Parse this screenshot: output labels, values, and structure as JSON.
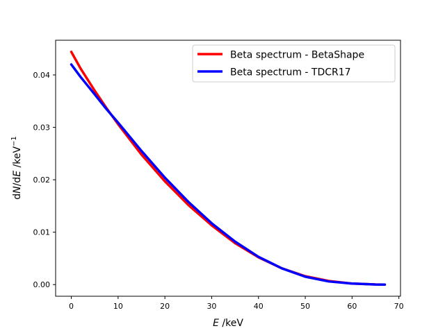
{
  "chart_data": {
    "type": "line",
    "title": "",
    "xlabel": "E /keV",
    "ylabel": "dN/dE /keV⁻¹",
    "xlim": [
      -3.35,
      70.35
    ],
    "ylim": [
      -0.00222,
      0.04662
    ],
    "grid": false,
    "legend_position": "top-right",
    "x_ticks": [
      0,
      10,
      20,
      30,
      40,
      50,
      60,
      70
    ],
    "y_ticks": [
      0.0,
      0.01,
      0.02,
      0.03,
      0.04
    ],
    "x_tick_labels": [
      "0",
      "10",
      "20",
      "30",
      "40",
      "50",
      "60",
      "70"
    ],
    "y_tick_labels": [
      "0.00",
      "0.01",
      "0.02",
      "0.03",
      "0.04"
    ],
    "series": [
      {
        "name": "Beta spectrum - BetaShape",
        "color": "#ff0000",
        "x": [
          0,
          2,
          5,
          7.5,
          10,
          15,
          20,
          25,
          30,
          35,
          40,
          45,
          50,
          55,
          60,
          63,
          65,
          67
        ],
        "y": [
          0.0444,
          0.0412,
          0.037,
          0.0337,
          0.0306,
          0.0248,
          0.0197,
          0.0152,
          0.0113,
          0.0079,
          0.0052,
          0.0031,
          0.0016,
          0.0007,
          0.0002,
          0.0001,
          3e-05,
          0.0
        ]
      },
      {
        "name": "Beta spectrum - TDCR17",
        "color": "#0000ff",
        "x": [
          0,
          2,
          5,
          7.5,
          10,
          15,
          20,
          25,
          30,
          35,
          40,
          45,
          50,
          55,
          60,
          63,
          65,
          67
        ],
        "y": [
          0.042,
          0.0396,
          0.0363,
          0.0335,
          0.0309,
          0.0255,
          0.0204,
          0.0158,
          0.0117,
          0.0082,
          0.0053,
          0.0031,
          0.0015,
          0.0006,
          0.0002,
          0.0001,
          2e-05,
          0.0
        ]
      }
    ]
  }
}
